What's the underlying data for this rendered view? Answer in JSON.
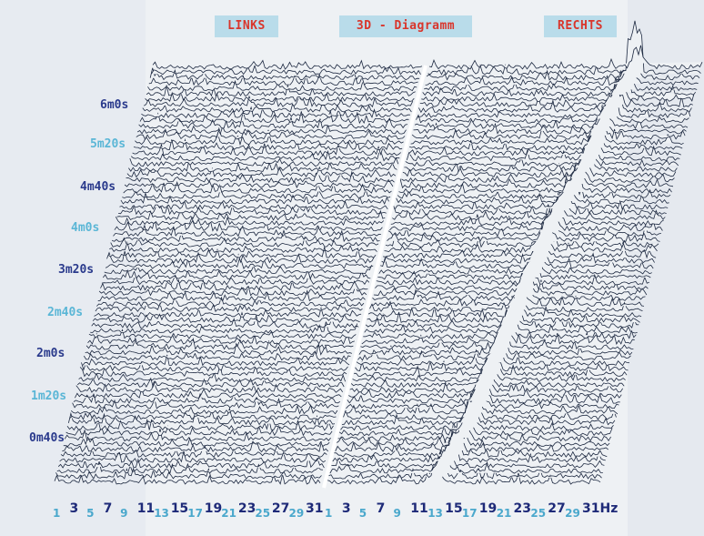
{
  "header": {
    "left_label": "LINKS",
    "title": "3D - Diagramm",
    "right_label": "RECHTS"
  },
  "colors": {
    "line": "#1c2840",
    "header_text": "#d9352b",
    "header_bg": "#b9dcea",
    "label_dark": "#1e2a78",
    "label_light": "#4aa8cc"
  },
  "chart_data": {
    "type": "waterfall",
    "title": "3D - Diagramm",
    "panels": [
      "LINKS",
      "RECHTS"
    ],
    "time_labels": [
      "6m0s",
      "5m20s",
      "4m40s",
      "4m0s",
      "3m20s",
      "2m40s",
      "2m0s",
      "1m20s",
      "0m40s"
    ],
    "time_label_display": [
      "6m0s",
      "5m20s",
      "4m40s",
      "4m0s",
      "3m20s",
      "2m40s",
      "2m0s",
      "1m20s",
      "0m40s"
    ],
    "freq_ticks_left": [
      "1",
      "3",
      "5",
      "7",
      "9",
      "11",
      "13",
      "15",
      "17",
      "19",
      "21",
      "23",
      "25",
      "27",
      "29",
      "31"
    ],
    "freq_ticks_right": [
      "1",
      "3",
      "5",
      "7",
      "9",
      "11",
      "13",
      "15",
      "17",
      "19",
      "21",
      "23",
      "25",
      "27",
      "29",
      "31Hz"
    ],
    "dominant_peak_right_hz": [
      {
        "time": "0m40s",
        "hz": 13
      },
      {
        "time": "1m20s",
        "hz": 15
      },
      {
        "time": "2m0s",
        "hz": 16
      },
      {
        "time": "2m40s",
        "hz": 17
      },
      {
        "time": "3m20s",
        "hz": 18
      },
      {
        "time": "4m0s",
        "hz": 19
      },
      {
        "time": "4m40s",
        "hz": 21
      },
      {
        "time": "5m20s",
        "hz": 22
      },
      {
        "time": "6m0s",
        "hz": 24
      }
    ],
    "grid": false
  }
}
